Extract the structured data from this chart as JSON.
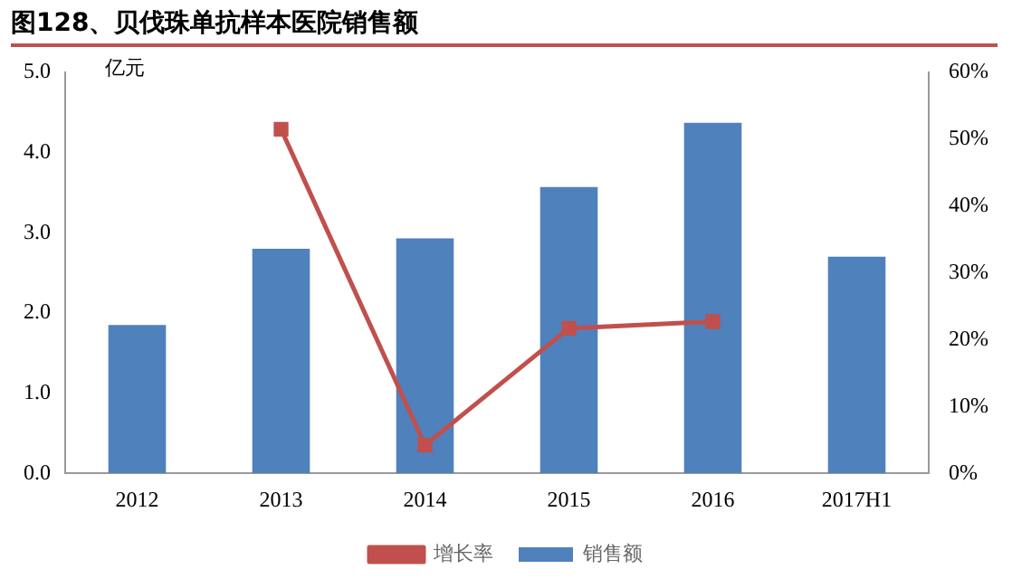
{
  "chart_data": {
    "type": "bar",
    "title": "图128、贝伐珠单抗样本医院销售额",
    "ylabel": "亿元",
    "categories": [
      "2012",
      "2013",
      "2014",
      "2015",
      "2016",
      "2017H1"
    ],
    "series": [
      {
        "name": "销售额",
        "color": "#4f81bd",
        "values": [
          1.85,
          2.8,
          2.93,
          3.57,
          4.37,
          2.7
        ]
      },
      {
        "name": "增长率",
        "type": "line",
        "axis": "y2",
        "color": "#c0504d",
        "values": [
          null,
          51.5,
          4.2,
          21.7,
          22.7,
          null
        ]
      }
    ],
    "ylim": [
      0,
      5
    ],
    "yticks": [
      {
        "value": 0,
        "label": "0.0"
      },
      {
        "value": 1,
        "label": "1.0"
      },
      {
        "value": 2,
        "label": "2.0"
      },
      {
        "value": 3,
        "label": "3.0"
      },
      {
        "value": 4,
        "label": "4.0"
      },
      {
        "value": 5,
        "label": "5.0"
      }
    ],
    "y2lim": [
      0,
      60
    ],
    "y2ticks": [
      {
        "value": 0,
        "label": "0%"
      },
      {
        "value": 10,
        "label": "10%"
      },
      {
        "value": 20,
        "label": "20%"
      },
      {
        "value": 30,
        "label": "30%"
      },
      {
        "value": 40,
        "label": "40%"
      },
      {
        "value": 50,
        "label": "50%"
      },
      {
        "value": 60,
        "label": "60%"
      }
    ],
    "grid": false,
    "legend": "bottom",
    "marker": "square"
  }
}
